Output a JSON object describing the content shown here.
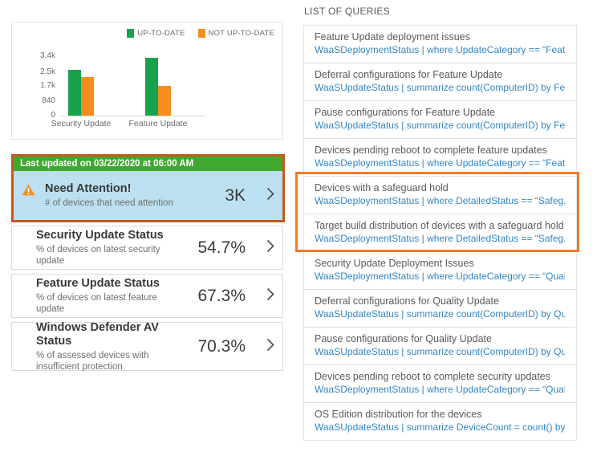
{
  "colors": {
    "up_to_date_green": "#18A24D",
    "not_up_to_date_orange": "#F78D1E",
    "banner_green": "#41A82F",
    "attention_tile_bg": "#BCE0F1",
    "highlight_orange_left": "#C35A1D",
    "highlight_orange_right": "#EC7C2C",
    "query_link_blue": "#3486C7"
  },
  "chart_data": {
    "type": "bar",
    "title": "",
    "categories": [
      "Security Update",
      "Feature Update"
    ],
    "series": [
      {
        "name": "UP-TO-DATE",
        "color": "#18A24D",
        "values": [
          2600,
          3300
        ]
      },
      {
        "name": "NOT UP-TO-DATE",
        "color": "#F78D1E",
        "values": [
          2200,
          1700
        ]
      }
    ],
    "ylim": [
      0,
      3400
    ],
    "yticks": {
      "values": [
        0,
        840,
        1700,
        2500,
        3400
      ],
      "labels": [
        "0",
        "840",
        "1.7k",
        "2.5k",
        "3.4k"
      ]
    },
    "legend_position": "top-right",
    "grid": false
  },
  "last_updated_banner": "Last updated on 03/22/2020 at 06:00 AM",
  "attention_tile": {
    "title": "Need Attention!",
    "subtitle": "# of devices that need attention",
    "value": "3K"
  },
  "status_tiles": [
    {
      "title": "Security Update Status",
      "subtitle": "% of devices on latest security update",
      "value": "54.7%"
    },
    {
      "title": "Feature Update Status",
      "subtitle": "% of devices on latest feature update",
      "value": "67.3%"
    },
    {
      "title": "Windows Defender AV Status",
      "subtitle": "% of assessed devices with insufficient protection",
      "value": "70.3%"
    }
  ],
  "queries": {
    "header": "LIST OF QUERIES",
    "items": [
      {
        "title": "Feature Update deployment issues",
        "query": "WaaSDeploymentStatus | where UpdateCategory == “Feature” ...",
        "highlighted": false
      },
      {
        "title": "Deferral configurations for Feature Update",
        "query": "WaaSUpdateStatus | summarize count(ComputerID) by Feature...",
        "highlighted": false
      },
      {
        "title": "Pause configurations for Feature Update",
        "query": "WaaSUpdateStatus | summarize count(ComputerID) by Feature...",
        "highlighted": false
      },
      {
        "title": "Devices pending reboot to complete feature updates",
        "query": "WaaSDeploymentStatus | where UpdateCategory == “Feature” ...",
        "highlighted": false
      },
      {
        "title": "Devices with a safeguard hold",
        "query": "WaaSDeploymentStatus | where DetailedStatus == “Safeg...",
        "highlighted": true
      },
      {
        "title": "Target build distribution of devices with a safeguard hold",
        "query": "WaaSDeploymentStatus | where DetailedStatus == “Safeg...",
        "highlighted": true
      },
      {
        "title": "Security Update Deployment Issues",
        "query": "WaaSDeploymentStatus | where UpdateCategory == “Quality” ...",
        "highlighted": false
      },
      {
        "title": "Deferral configurations for Quality Update",
        "query": "WaaSUpdateStatus | summarize count(ComputerID) by Quality...",
        "highlighted": false
      },
      {
        "title": "Pause configurations for Quality Update",
        "query": "WaaSUpdateStatus | summarize count(ComputerID) by Quality...",
        "highlighted": false
      },
      {
        "title": "Devices pending reboot to complete security updates",
        "query": "WaaSDeploymentStatus | where UpdateCategory == “Quality” ...",
        "highlighted": false
      },
      {
        "title": "OS Edition distribution for the devices",
        "query": "WaaSUpdateStatus | summarize DeviceCount = count() by OSE...",
        "highlighted": false
      }
    ]
  }
}
